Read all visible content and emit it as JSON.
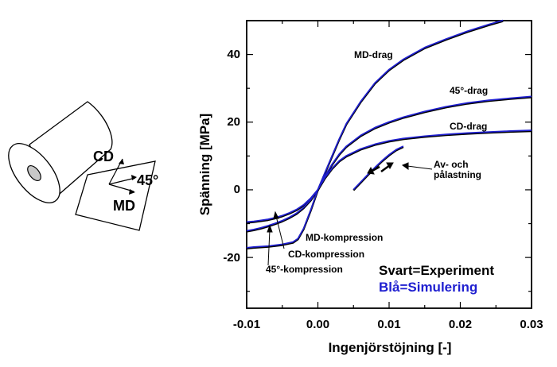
{
  "roll_diagram": {
    "cd_label": "CD",
    "md_label": "MD",
    "angle_label": "45°"
  },
  "chart_data": {
    "type": "line",
    "xlabel": "Ingenjörstöjning [-]",
    "ylabel": "Spänning [MPa]",
    "xlim": [
      -0.01,
      0.03
    ],
    "ylim": [
      -35,
      50
    ],
    "x_ticks": [
      -0.01,
      0.0,
      0.01,
      0.02,
      0.03
    ],
    "x_tick_labels": [
      "-0.01",
      "0.00",
      "0.01",
      "0.02",
      "0.03"
    ],
    "y_ticks": [
      -20,
      0,
      20,
      40
    ],
    "y_tick_labels": [
      "-20",
      "0",
      "20",
      "40"
    ],
    "grid": false,
    "legend_lines": [
      "Svart=Experiment",
      "Blå=Simulering"
    ],
    "colors": {
      "experiment": "#000000",
      "simulation": "#1f1fd0"
    },
    "annotations": [
      {
        "text": "MD-drag"
      },
      {
        "text": "45°-drag"
      },
      {
        "text": "CD-drag"
      },
      {
        "text": "Av- och"
      },
      {
        "text": "pålastning"
      },
      {
        "text": "MD-kompression"
      },
      {
        "text": "CD-kompression"
      },
      {
        "text": "45°-kompression"
      }
    ],
    "series": [
      {
        "x": [
          0,
          0.001,
          0.002,
          0.003,
          0.004,
          0.006,
          0.008,
          0.01,
          0.012,
          0.015,
          0.018,
          0.021,
          0.024,
          0.026
        ],
        "y": [
          0,
          5,
          10,
          15,
          19.5,
          26,
          31.5,
          35.5,
          38.5,
          42,
          44.5,
          46.8,
          48.8,
          50
        ]
      },
      {
        "x": [
          0,
          0.001,
          0.002,
          0.003,
          0.004,
          0.006,
          0.008,
          0.01,
          0.012,
          0.015,
          0.018,
          0.021,
          0.024,
          0.027,
          0.03
        ],
        "y": [
          0,
          4,
          7.5,
          10.5,
          12.8,
          16,
          18.3,
          20,
          21.4,
          23.1,
          24.5,
          25.6,
          26.4,
          27,
          27.5
        ]
      },
      {
        "x": [
          0,
          0.001,
          0.002,
          0.003,
          0.004,
          0.006,
          0.008,
          0.01,
          0.012,
          0.015,
          0.018,
          0.021,
          0.024,
          0.027,
          0.03
        ],
        "y": [
          0,
          3.5,
          6.3,
          8.5,
          10,
          12,
          13.4,
          14.4,
          15.1,
          15.8,
          16.3,
          16.7,
          17,
          17.3,
          17.5
        ]
      },
      {
        "x": [
          0.005,
          0.006,
          0.007,
          0.008,
          0.009,
          0.01,
          0.011,
          0.012
        ],
        "y": [
          0,
          2.2,
          4.4,
          6.5,
          8.5,
          10.3,
          11.8,
          12.8
        ]
      },
      {
        "x": [
          0,
          -0.001,
          -0.002,
          -0.0028,
          -0.0035,
          -0.005,
          -0.007,
          -0.009,
          -0.01
        ],
        "y": [
          0,
          -6,
          -11.5,
          -14.5,
          -15.5,
          -16.2,
          -16.7,
          -17,
          -17.2
        ]
      },
      {
        "x": [
          0,
          -0.001,
          -0.002,
          -0.003,
          -0.004,
          -0.005,
          -0.006,
          -0.007,
          -0.008,
          -0.009,
          -0.01
        ],
        "y": [
          0,
          -3,
          -5.3,
          -7,
          -8.2,
          -9.2,
          -10,
          -10.7,
          -11.3,
          -11.8,
          -12.2
        ]
      },
      {
        "x": [
          0,
          -0.001,
          -0.002,
          -0.003,
          -0.004,
          -0.005,
          -0.006,
          -0.007,
          -0.008,
          -0.009,
          -0.01
        ],
        "y": [
          0,
          -2.5,
          -4.5,
          -5.9,
          -6.9,
          -7.7,
          -8.3,
          -8.8,
          -9.1,
          -9.4,
          -9.6
        ]
      }
    ]
  }
}
